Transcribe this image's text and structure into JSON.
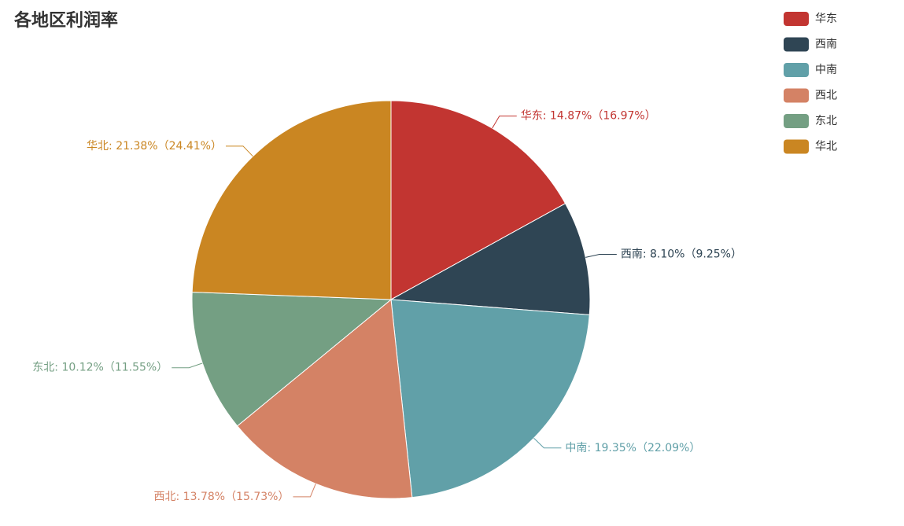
{
  "chart_data": {
    "type": "pie",
    "title": "各地区利润率",
    "categories": [
      "华东",
      "西南",
      "中南",
      "西北",
      "东北",
      "华北"
    ],
    "values": [
      14.87,
      8.1,
      19.35,
      13.78,
      10.12,
      21.38
    ],
    "value_labels": [
      "华东: 14.87%（16.97%）",
      "西南: 8.10%（9.25%）",
      "中南: 19.35%（22.09%）",
      "西北: 13.78%（15.73%）",
      "东北: 10.12%（11.55%）",
      "华北: 21.38%（24.41%）"
    ],
    "colors": [
      "#c23531",
      "#2f4554",
      "#61a0a8",
      "#d48265",
      "#749f83",
      "#ca8622"
    ],
    "legend": "top-right"
  }
}
